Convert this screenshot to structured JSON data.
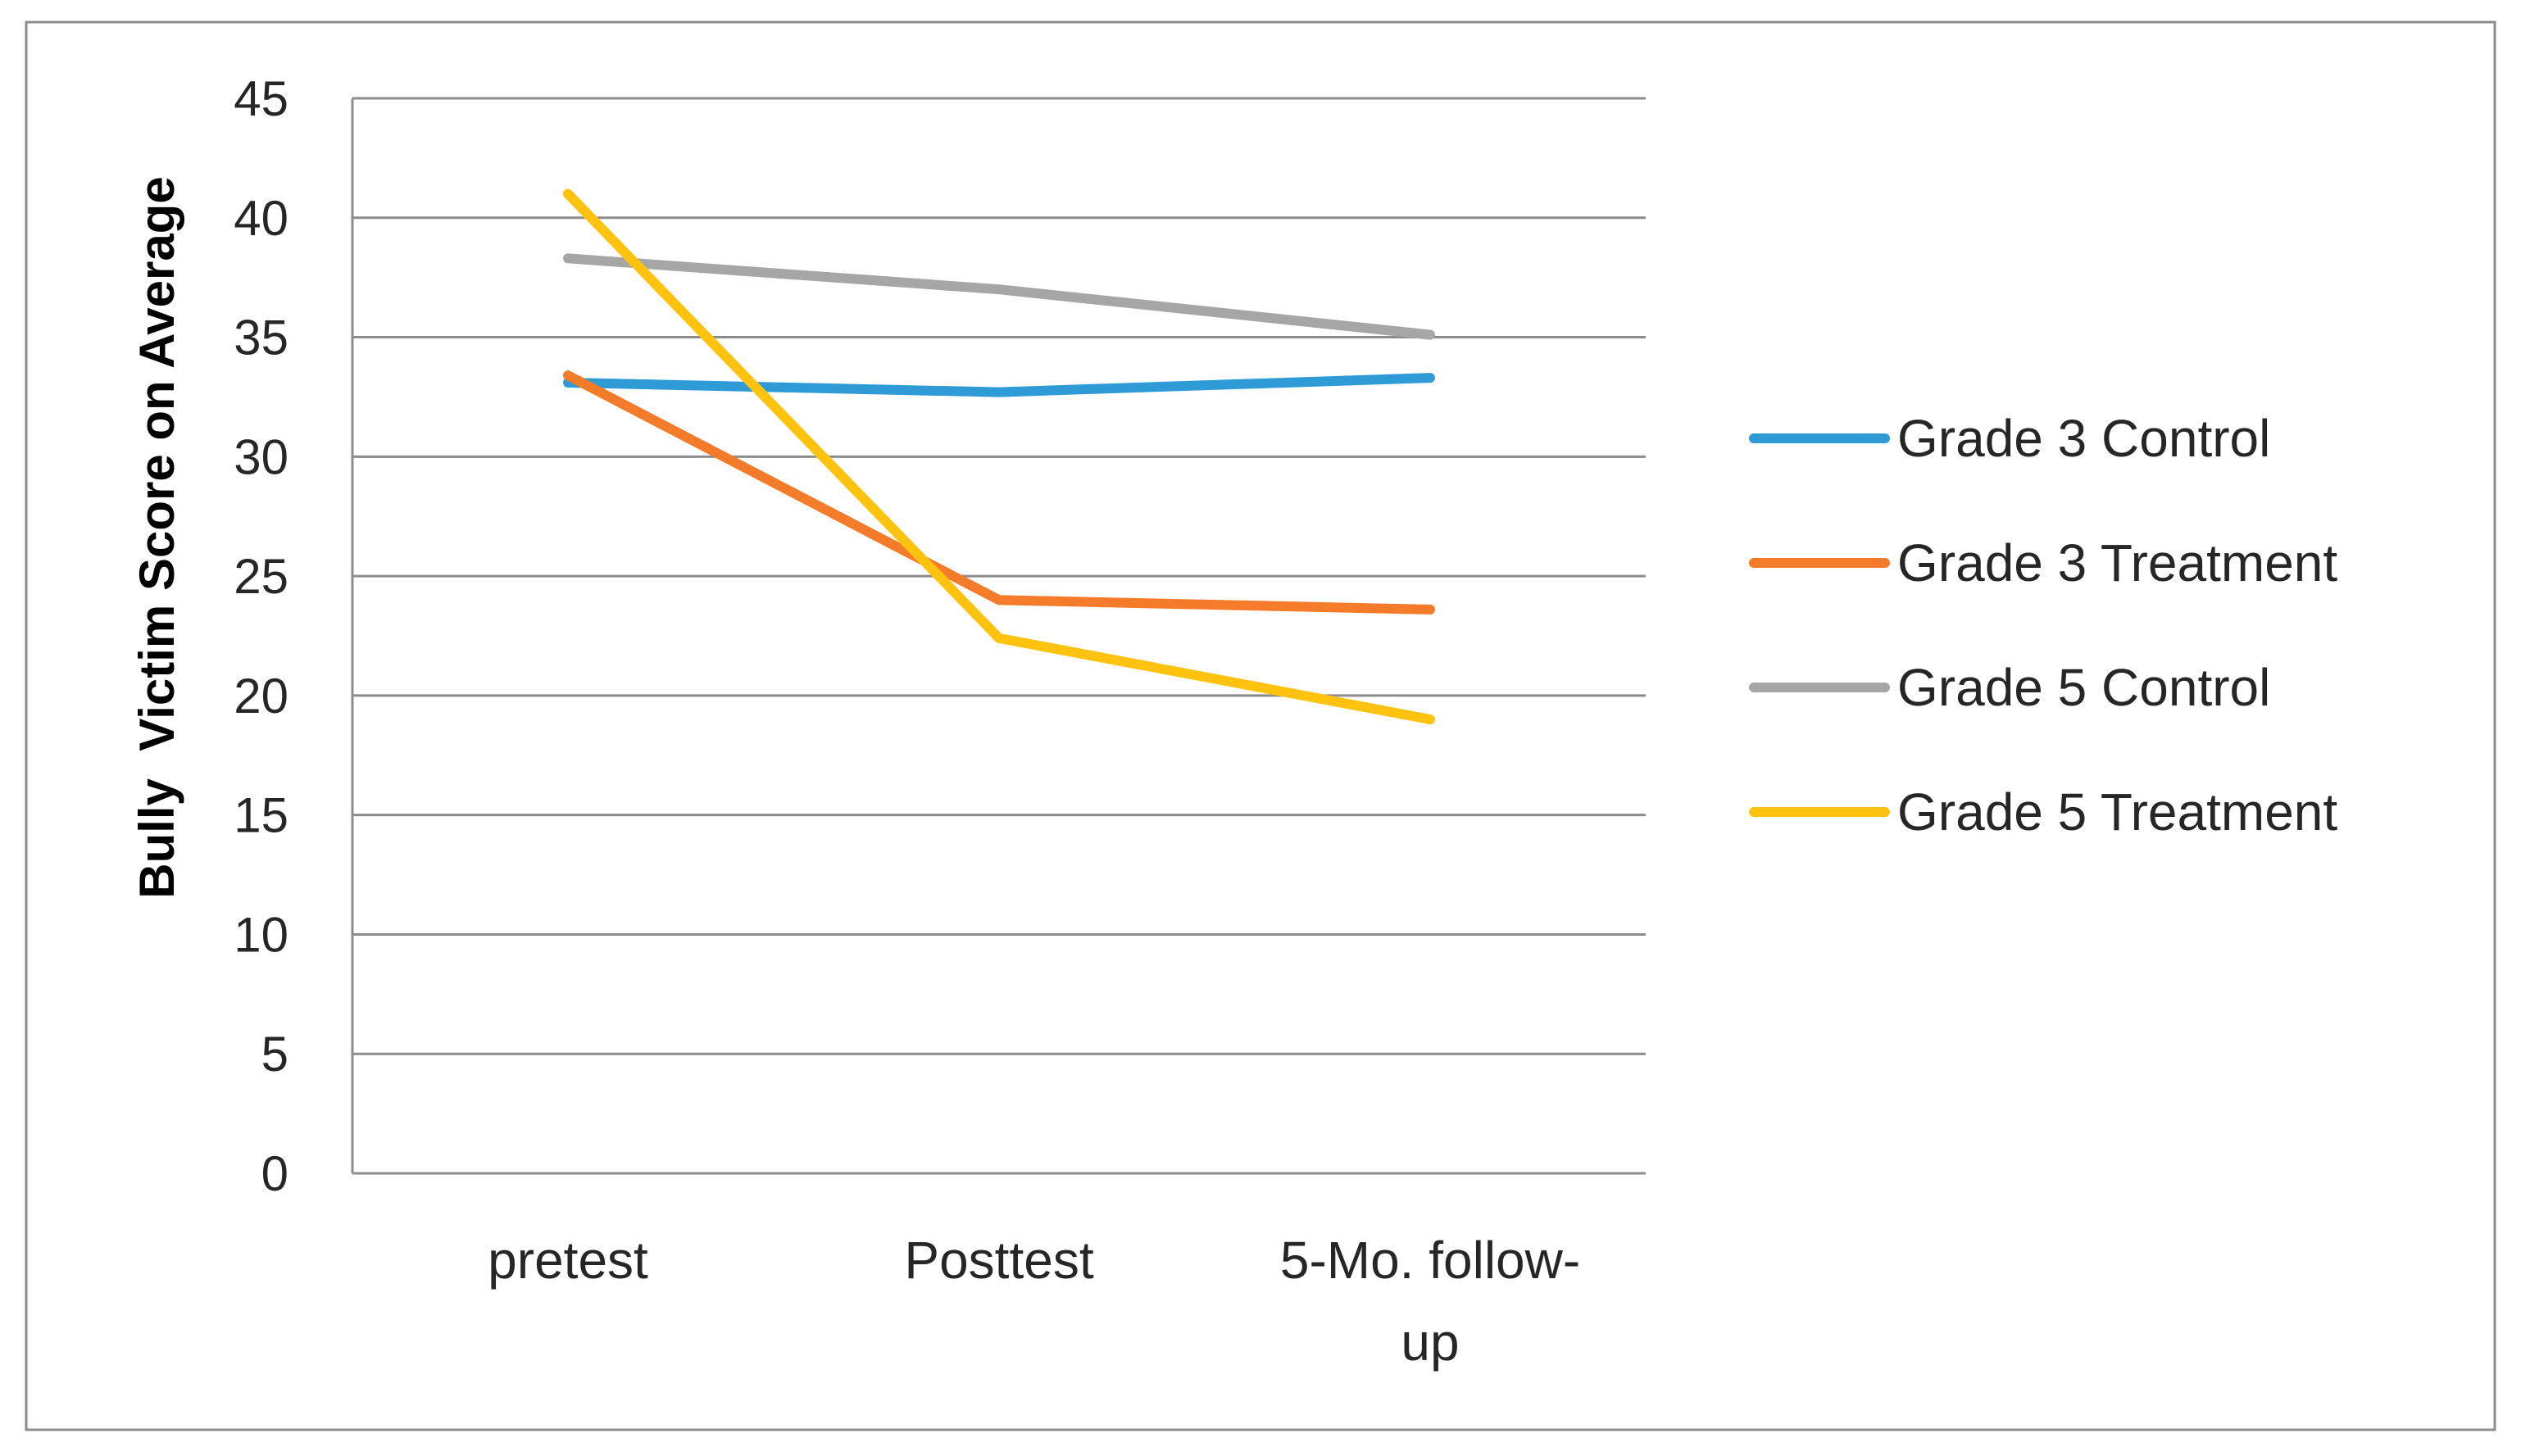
{
  "chart_data": {
    "type": "line",
    "title": "",
    "xlabel": "",
    "ylabel": "Bully  Victim Score on Average",
    "categories": [
      "pretest",
      "Posttest",
      "5-Mo. follow-up"
    ],
    "category_lines": [
      [
        "pretest"
      ],
      [
        "Posttest"
      ],
      [
        "5-Mo. follow-",
        "up"
      ]
    ],
    "ylim": [
      0,
      45
    ],
    "yticks": [
      0,
      5,
      10,
      15,
      20,
      25,
      30,
      35,
      40,
      45
    ],
    "grid": true,
    "legend_position": "right",
    "series": [
      {
        "name": "Grade 3 Control",
        "color": "#2E9BD6",
        "values": [
          33.1,
          32.7,
          33.3
        ]
      },
      {
        "name": "Grade 3 Treatment",
        "color": "#F47B2A",
        "values": [
          33.4,
          24.0,
          23.6
        ]
      },
      {
        "name": "Grade 5 Control",
        "color": "#A6A6A6",
        "values": [
          38.3,
          37.0,
          35.1
        ]
      },
      {
        "name": "Grade 5 Treatment",
        "color": "#FFC30F",
        "values": [
          41.0,
          22.4,
          19.0
        ]
      }
    ]
  }
}
